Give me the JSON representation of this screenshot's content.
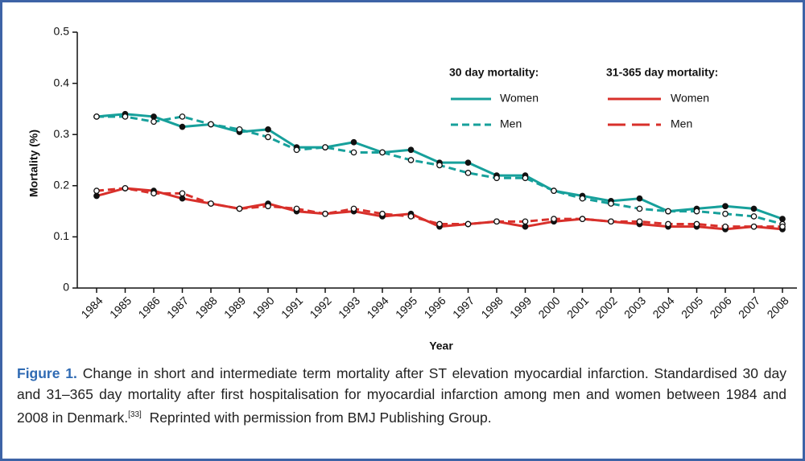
{
  "chart_data": {
    "type": "line",
    "y_label": "Mortality (%)",
    "x_label": "Year",
    "categories": [
      "1984",
      "1985",
      "1986",
      "1987",
      "1988",
      "1989",
      "1990",
      "1991",
      "1992",
      "1993",
      "1994",
      "1995",
      "1996",
      "1997",
      "1998",
      "1999",
      "2000",
      "2001",
      "2002",
      "2003",
      "2004",
      "2005",
      "2006",
      "2007",
      "2008"
    ],
    "ylim": [
      0,
      0.5
    ],
    "yticks": [
      0,
      0.1,
      0.2,
      0.3,
      0.4,
      0.5
    ],
    "groups": [
      {
        "title": "30 day mortality:",
        "series": [
          {
            "name": "Women",
            "color": "#17a09b",
            "dashed": false,
            "values": [
              0.335,
              0.34,
              0.335,
              0.315,
              0.32,
              0.305,
              0.31,
              0.275,
              0.275,
              0.285,
              0.265,
              0.27,
              0.245,
              0.245,
              0.22,
              0.22,
              0.19,
              0.18,
              0.17,
              0.175,
              0.15,
              0.155,
              0.16,
              0.155,
              0.135
            ]
          },
          {
            "name": "Men",
            "color": "#17a09b",
            "dashed": true,
            "values": [
              0.335,
              0.335,
              0.325,
              0.335,
              0.32,
              0.31,
              0.295,
              0.27,
              0.275,
              0.265,
              0.265,
              0.25,
              0.24,
              0.225,
              0.215,
              0.215,
              0.19,
              0.175,
              0.165,
              0.155,
              0.15,
              0.15,
              0.145,
              0.14,
              0.125
            ]
          }
        ]
      },
      {
        "title": "31-365 day mortality:",
        "series": [
          {
            "name": "Women",
            "color": "#d8302b",
            "dashed": false,
            "values": [
              0.18,
              0.195,
              0.19,
              0.175,
              0.165,
              0.155,
              0.165,
              0.15,
              0.145,
              0.15,
              0.14,
              0.145,
              0.12,
              0.125,
              0.13,
              0.12,
              0.13,
              0.135,
              0.13,
              0.125,
              0.12,
              0.12,
              0.115,
              0.12,
              0.115
            ]
          },
          {
            "name": "Men",
            "color": "#d8302b",
            "dashed": true,
            "values": [
              0.19,
              0.195,
              0.185,
              0.185,
              0.165,
              0.155,
              0.16,
              0.155,
              0.145,
              0.155,
              0.145,
              0.14,
              0.125,
              0.125,
              0.13,
              0.13,
              0.135,
              0.135,
              0.13,
              0.13,
              0.125,
              0.125,
              0.12,
              0.12,
              0.12
            ]
          }
        ]
      }
    ],
    "caption": {
      "label": "Figure 1.",
      "text": "Change in short and intermediate term mortality after ST elevation myocardial infarction. Standardised 30 day and 31–365 day mortality after first hospitalisation for myocardial infarction among men and women between 1984 and 2008 in Denmark.",
      "ref": "[33]",
      "text_after": "Reprinted with permission from BMJ Publishing Group."
    }
  }
}
